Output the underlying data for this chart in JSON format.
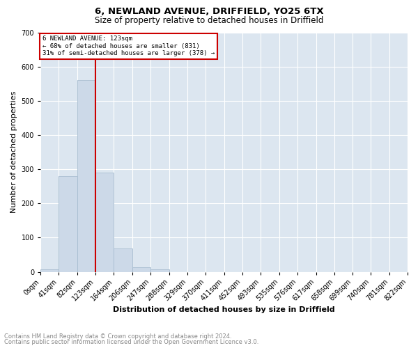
{
  "title1": "6, NEWLAND AVENUE, DRIFFIELD, YO25 6TX",
  "title2": "Size of property relative to detached houses in Driffield",
  "xlabel": "Distribution of detached houses by size in Driffield",
  "ylabel": "Number of detached properties",
  "footer1": "Contains HM Land Registry data © Crown copyright and database right 2024.",
  "footer2": "Contains public sector information licensed under the Open Government Licence v3.0.",
  "bin_edges": [
    0,
    41,
    82,
    123,
    164,
    206,
    247,
    288,
    329,
    370,
    411,
    452,
    493,
    535,
    576,
    617,
    658,
    699,
    740,
    781,
    822
  ],
  "bin_labels": [
    "0sqm",
    "41sqm",
    "82sqm",
    "123sqm",
    "164sqm",
    "206sqm",
    "247sqm",
    "288sqm",
    "329sqm",
    "370sqm",
    "411sqm",
    "452sqm",
    "493sqm",
    "535sqm",
    "576sqm",
    "617sqm",
    "658sqm",
    "699sqm",
    "740sqm",
    "781sqm",
    "822sqm"
  ],
  "bar_heights": [
    8,
    280,
    560,
    290,
    68,
    14,
    8,
    0,
    0,
    0,
    0,
    0,
    0,
    0,
    0,
    0,
    0,
    0,
    0,
    0
  ],
  "bar_color": "#ccd9e8",
  "bar_edge_color": "#a8bdd0",
  "vline_x": 123,
  "vline_color": "#cc0000",
  "annotation_text": "6 NEWLAND AVENUE: 123sqm\n← 68% of detached houses are smaller (831)\n31% of semi-detached houses are larger (378) →",
  "annotation_box_color": "white",
  "annotation_box_edge": "#cc0000",
  "ylim": [
    0,
    700
  ],
  "yticks": [
    0,
    100,
    200,
    300,
    400,
    500,
    600,
    700
  ],
  "plot_background": "#dce6f0",
  "grid_color": "white",
  "title1_fontsize": 9.5,
  "title2_fontsize": 8.5,
  "xlabel_fontsize": 8,
  "ylabel_fontsize": 8,
  "footer_fontsize": 6,
  "tick_fontsize": 7
}
